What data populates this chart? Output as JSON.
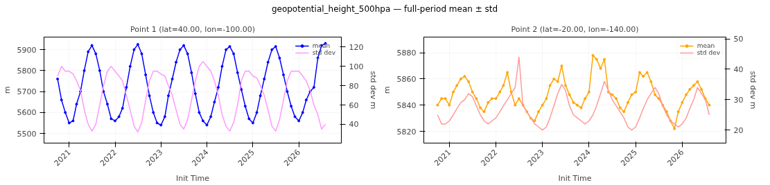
{
  "chart_data": [
    {
      "type": "line",
      "title": "Point 1 (lat=40.00, lon=-100.00)",
      "xlabel": "Init Time",
      "ylabel": "m",
      "y2label": "std dev m",
      "annotations": [
        "geopotential_height_500hpa — full-period mean ± std"
      ],
      "x": [
        "2020-10",
        "2020-11",
        "2020-12",
        "2021-01",
        "2021-02",
        "2021-03",
        "2021-04",
        "2021-05",
        "2021-06",
        "2021-07",
        "2021-08",
        "2021-09",
        "2021-10",
        "2021-11",
        "2021-12",
        "2022-01",
        "2022-02",
        "2022-03",
        "2022-04",
        "2022-05",
        "2022-06",
        "2022-07",
        "2022-08",
        "2022-09",
        "2022-10",
        "2022-11",
        "2022-12",
        "2023-01",
        "2023-02",
        "2023-03",
        "2023-04",
        "2023-05",
        "2023-06",
        "2023-07",
        "2023-08",
        "2023-09",
        "2023-10",
        "2023-11",
        "2023-12",
        "2024-01",
        "2024-02",
        "2024-03",
        "2024-04",
        "2024-05",
        "2024-06",
        "2024-07",
        "2024-08",
        "2024-09",
        "2024-10",
        "2024-11",
        "2024-12",
        "2025-01",
        "2025-02",
        "2025-03",
        "2025-04",
        "2025-05",
        "2025-06",
        "2025-07",
        "2025-08",
        "2025-09",
        "2025-10",
        "2025-11",
        "2025-12",
        "2026-01",
        "2026-02",
        "2026-03",
        "2026-04",
        "2026-05",
        "2026-06",
        "2026-07",
        "2026-08"
      ],
      "series": [
        {
          "name": "mean",
          "color": "#0000ff",
          "marker": "circle",
          "values": [
            5760,
            5660,
            5600,
            5550,
            5560,
            5640,
            5700,
            5800,
            5890,
            5920,
            5880,
            5800,
            5700,
            5640,
            5570,
            5560,
            5580,
            5620,
            5720,
            5820,
            5900,
            5925,
            5880,
            5780,
            5680,
            5600,
            5550,
            5540,
            5580,
            5680,
            5760,
            5840,
            5900,
            5920,
            5880,
            5790,
            5690,
            5600,
            5560,
            5540,
            5580,
            5650,
            5720,
            5820,
            5900,
            5915,
            5880,
            5790,
            5710,
            5630,
            5570,
            5550,
            5600,
            5680,
            5760,
            5840,
            5900,
            5915,
            5860,
            5780,
            5700,
            5630,
            5580,
            5560,
            5600,
            5660,
            5700,
            5720,
            5860,
            5920,
            5930
          ]
        },
        {
          "name": "std dev",
          "color": "#ff99ff",
          "axis": "y2",
          "values": [
            90,
            100,
            95,
            95,
            92,
            85,
            75,
            55,
            40,
            33,
            40,
            60,
            80,
            95,
            100,
            95,
            90,
            85,
            70,
            55,
            38,
            32,
            42,
            65,
            85,
            95,
            95,
            92,
            90,
            80,
            70,
            55,
            40,
            35,
            45,
            65,
            85,
            100,
            105,
            100,
            95,
            85,
            70,
            50,
            38,
            33,
            42,
            60,
            85,
            95,
            95,
            90,
            88,
            80,
            70,
            55,
            38,
            33,
            45,
            65,
            85,
            95,
            95,
            95,
            90,
            85,
            75,
            60,
            50,
            35,
            40
          ]
        }
      ],
      "xlim": [
        "2020-06-15",
        "2026-12-05"
      ],
      "xticks": [
        {
          "value": "2021-01-01",
          "label": "2021"
        },
        {
          "value": "2022-01-01",
          "label": "2022"
        },
        {
          "value": "2023-01-01",
          "label": "2023"
        },
        {
          "value": "2024-01-01",
          "label": "2024"
        },
        {
          "value": "2025-01-01",
          "label": "2025"
        },
        {
          "value": "2026-01-01",
          "label": "2026"
        }
      ],
      "ylim": [
        5454,
        5960
      ],
      "yticks": [
        5500,
        5600,
        5700,
        5800,
        5900
      ],
      "y2lim": [
        20.5,
        130.4
      ],
      "y2ticks": [
        40,
        60,
        80,
        100,
        120
      ],
      "grid": true,
      "legend": "top right"
    },
    {
      "type": "line",
      "title": "Point 2 (lat=-20.00, lon=-140.00)",
      "xlabel": "Init Time",
      "ylabel": "m",
      "y2label": "std dev m",
      "x": [
        "2020-10",
        "2020-11",
        "2020-12",
        "2021-01",
        "2021-02",
        "2021-03",
        "2021-04",
        "2021-05",
        "2021-06",
        "2021-07",
        "2021-08",
        "2021-09",
        "2021-10",
        "2021-11",
        "2021-12",
        "2022-01",
        "2022-02",
        "2022-03",
        "2022-04",
        "2022-05",
        "2022-06",
        "2022-07",
        "2022-08",
        "2022-09",
        "2022-10",
        "2022-11",
        "2022-12",
        "2023-01",
        "2023-02",
        "2023-03",
        "2023-04",
        "2023-05",
        "2023-06",
        "2023-07",
        "2023-08",
        "2023-09",
        "2023-10",
        "2023-11",
        "2023-12",
        "2024-01",
        "2024-02",
        "2024-03",
        "2024-04",
        "2024-05",
        "2024-06",
        "2024-07",
        "2024-08",
        "2024-09",
        "2024-10",
        "2024-11",
        "2024-12",
        "2025-01",
        "2025-02",
        "2025-03",
        "2025-04",
        "2025-05",
        "2025-06",
        "2025-07",
        "2025-08",
        "2025-09",
        "2025-10",
        "2025-11",
        "2025-12",
        "2026-01",
        "2026-02",
        "2026-03",
        "2026-04",
        "2026-05",
        "2026-06",
        "2026-07",
        "2026-08"
      ],
      "series": [
        {
          "name": "mean",
          "color": "#ffa500",
          "marker": "circle",
          "values": [
            5840,
            5845,
            5845,
            5840,
            5850,
            5855,
            5860,
            5862,
            5858,
            5850,
            5845,
            5838,
            5835,
            5842,
            5845,
            5845,
            5850,
            5855,
            5865,
            5850,
            5840,
            5845,
            5840,
            5835,
            5830,
            5828,
            5835,
            5840,
            5845,
            5855,
            5860,
            5858,
            5870,
            5855,
            5848,
            5842,
            5840,
            5838,
            5845,
            5850,
            5878,
            5875,
            5868,
            5875,
            5850,
            5848,
            5845,
            5838,
            5835,
            5842,
            5848,
            5850,
            5865,
            5862,
            5865,
            5858,
            5848,
            5845,
            5840,
            5835,
            5828,
            5822,
            5835,
            5842,
            5848,
            5852,
            5855,
            5858,
            5852,
            5845,
            5840
          ]
        },
        {
          "name": "std dev",
          "color": "#ff9a9a",
          "axis": "y2",
          "values": [
            25,
            22,
            22,
            23,
            25,
            27,
            29,
            30,
            32,
            31,
            28,
            25,
            23,
            22,
            23,
            24,
            26,
            28,
            30,
            32,
            34,
            44,
            28,
            26,
            24,
            22,
            21,
            20,
            21,
            24,
            28,
            32,
            35,
            33,
            28,
            25,
            24,
            23,
            22,
            23,
            25,
            28,
            32,
            36,
            33,
            30,
            28,
            26,
            24,
            21,
            20,
            21,
            24,
            27,
            30,
            32,
            34,
            32,
            28,
            25,
            23,
            22,
            21,
            22,
            24,
            27,
            30,
            34,
            32,
            30,
            25
          ]
        }
      ],
      "xlim": [
        "2020-06-15",
        "2026-12-10"
      ],
      "xticks": [
        {
          "value": "2021-01-01",
          "label": "2021"
        },
        {
          "value": "2022-01-01",
          "label": "2022"
        },
        {
          "value": "2023-01-01",
          "label": "2023"
        },
        {
          "value": "2024-01-01",
          "label": "2024"
        },
        {
          "value": "2025-01-01",
          "label": "2025"
        },
        {
          "value": "2026-01-01",
          "label": "2026"
        }
      ],
      "ylim": [
        5811,
        5892
      ],
      "yticks": [
        5820,
        5840,
        5860,
        5880
      ],
      "y2lim": [
        15.7,
        50.6
      ],
      "y2ticks": [
        20,
        30,
        40,
        50
      ],
      "grid": true,
      "legend": "top right"
    }
  ]
}
